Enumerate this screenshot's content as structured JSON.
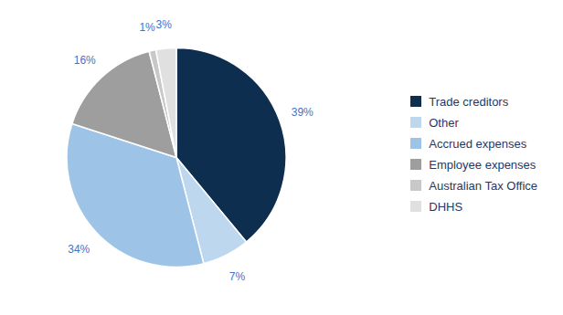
{
  "chart_data": {
    "type": "pie",
    "categories": [
      "Trade creditors",
      "Other",
      "Accrued expenses",
      "Employee expenses",
      "Australian Tax Office",
      "DHHS"
    ],
    "values": [
      39,
      7,
      34,
      16,
      1,
      3
    ],
    "value_labels": [
      "39%",
      "7%",
      "34%",
      "16%",
      "1%",
      "3%"
    ],
    "colors": [
      "#0d2e4e",
      "#bdd7ee",
      "#9dc3e6",
      "#9e9e9e",
      "#c8c8c8",
      "#e0e0e0"
    ],
    "data_labels": true,
    "legend": "right"
  }
}
